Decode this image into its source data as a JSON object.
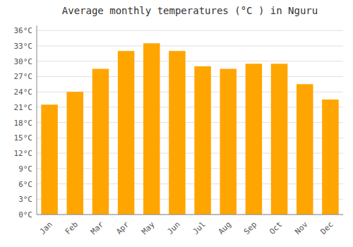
{
  "chart_data": {
    "type": "bar",
    "title": "Average monthly temperatures (°C ) in Nguru",
    "categories": [
      "Jan",
      "Feb",
      "Mar",
      "Apr",
      "May",
      "Jun",
      "Jul",
      "Aug",
      "Sep",
      "Oct",
      "Nov",
      "Dec"
    ],
    "values": [
      21.5,
      24.0,
      28.5,
      32.0,
      33.5,
      32.0,
      29.0,
      28.5,
      29.5,
      29.5,
      25.5,
      22.5
    ],
    "color": "#FFA500",
    "ylim": [
      0,
      37
    ],
    "yticks": [
      {
        "value": 0,
        "label": "0°C"
      },
      {
        "value": 3,
        "label": "3°C"
      },
      {
        "value": 6,
        "label": "6°C"
      },
      {
        "value": 9,
        "label": "9°C"
      },
      {
        "value": 12,
        "label": "12°C"
      },
      {
        "value": 15,
        "label": "15°C"
      },
      {
        "value": 18,
        "label": "18°C"
      },
      {
        "value": 21,
        "label": "21°C"
      },
      {
        "value": 24,
        "label": "24°C"
      },
      {
        "value": 27,
        "label": "27°C"
      },
      {
        "value": 30,
        "label": "30°C"
      },
      {
        "value": 33,
        "label": "33°C"
      },
      {
        "value": 36,
        "label": "36°C"
      }
    ],
    "grid": true
  }
}
